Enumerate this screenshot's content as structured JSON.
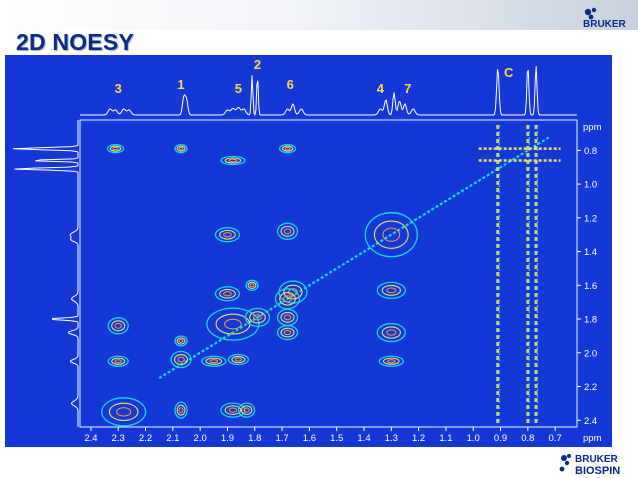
{
  "slide": {
    "title": "2D NOESY"
  },
  "logos": {
    "top": "BRUKER",
    "bottom_line1": "BRUKER",
    "bottom_line2": "BIOSPIN"
  },
  "spectrum": {
    "peak_labels": [
      "3",
      "1",
      "2",
      "5",
      "6",
      "4",
      "7",
      "C"
    ],
    "x_axis": {
      "ticks": [
        "2.4",
        "2.3",
        "2.2",
        "2.1",
        "2.0",
        "1.9",
        "1.8",
        "1.7",
        "1.6",
        "1.5",
        "1.4",
        "1.3",
        "1.2",
        "1.1",
        "1.0",
        "0.9",
        "0.8",
        "0.7"
      ],
      "unit": "ppm"
    },
    "y_axis": {
      "ticks": [
        "0.8",
        "1.0",
        "1.2",
        "1.4",
        "1.6",
        "1.8",
        "2.0",
        "2.2",
        "2.4"
      ],
      "unit": "ppm"
    },
    "colors": {
      "background": "#1437d6",
      "label": "#ffd84a",
      "trace": "#ffffff",
      "contour_low": "#17d6e6",
      "contour_mid": "#e8e26a",
      "contour_high": "#ff9b2e"
    }
  }
}
